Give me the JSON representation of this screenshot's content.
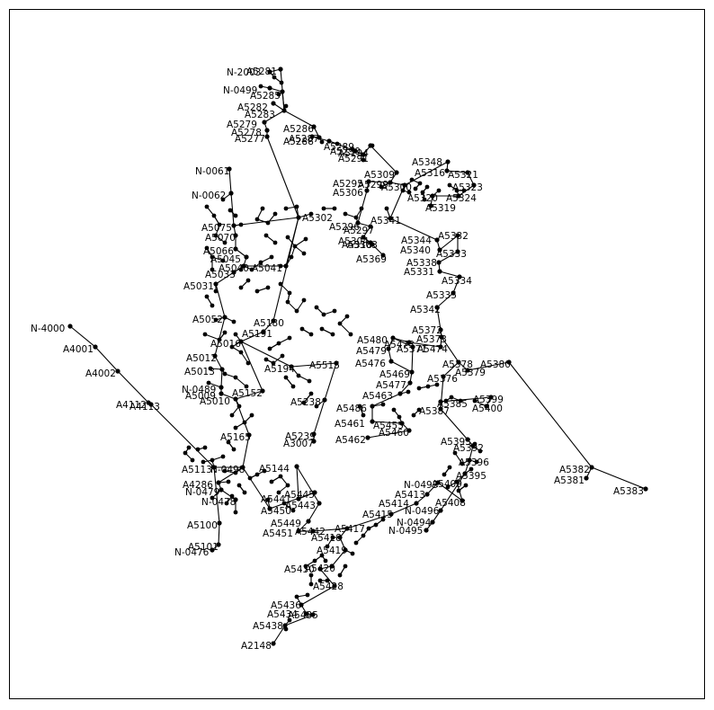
{
  "diagram": {
    "type": "network-graph",
    "labels": {
      "n1": "N-2003",
      "n2": "A5281",
      "n3": "N-0499",
      "n4": "A5285",
      "n5": "A5282",
      "n6": "A5283",
      "n7": "A5279",
      "n8": "A5278",
      "n9": "A5277",
      "n10": "A5286",
      "n11": "A5288",
      "n12": "A5287",
      "n13": "A5289",
      "n14": "A5294",
      "n15": "A5290",
      "n16": "A5291",
      "n17": "A5309",
      "n18": "A5295",
      "n19": "A5306",
      "n20": "A5299",
      "n21": "A5300",
      "n22": "A5302",
      "n23": "A5296",
      "n24": "A5297",
      "n25": "A5304",
      "n26": "A5303",
      "n27": "A5318",
      "n28": "A5369",
      "n29": "A5348",
      "n30": "A5316",
      "n31": "A5321",
      "n32": "A5323",
      "n33": "A5324",
      "n34": "A5320",
      "n35": "A5319",
      "n36": "A5341",
      "n37": "A5344",
      "n38": "A5340",
      "n39": "A5332",
      "n40": "A5333",
      "n41": "A5338",
      "n42": "A5331",
      "n43": "A5334",
      "n44": "A5335",
      "n45": "A5342",
      "n46": "A5372",
      "n47": "A5373",
      "n48": "A5480",
      "n49": "A5479",
      "n50": "A5473",
      "n51": "A5474",
      "n52": "A5476",
      "n53": "A5469",
      "n54": "A5477",
      "n55": "A5463",
      "n56": "A5378",
      "n57": "A5379",
      "n58": "A5380",
      "n59": "A5376",
      "n60": "A5399",
      "n61": "A5400",
      "n62": "A5387",
      "n63": "A5486",
      "n64": "A5461",
      "n65": "A5455",
      "n66": "A5460",
      "n67": "A5462",
      "n68": "A5382",
      "n69": "A5381",
      "n70": "A5383",
      "n71": "A5396",
      "n72": "A5392",
      "n73": "A5395",
      "n74": "A5408",
      "n75": "N-0493",
      "n76": "A5413",
      "n77": "A5414",
      "n78": "A5415",
      "n79": "N-0496",
      "n80": "N-0494",
      "n81": "N-0495",
      "n82": "A5417",
      "n83": "A5418",
      "n84": "A5419",
      "n85": "A5442",
      "n86": "A5451",
      "n87": "A5449",
      "n88": "A5443",
      "n89": "A5441",
      "n90": "A5430",
      "n91": "A5428",
      "n92": "A5436",
      "n93": "A5434",
      "n94": "A5435",
      "n95": "A5438",
      "n96": "A2148",
      "n97": "A5239",
      "n98": "A3007",
      "n99": "A5238",
      "n100": "A5515",
      "n101": "A5152",
      "n102": "A5009",
      "n103": "N-0489",
      "n104": "A5013",
      "n105": "A5012",
      "n106": "A5016",
      "n107": "A5165",
      "n108": "A5191",
      "n109": "A5180",
      "n110": "N-4000",
      "n111": "A4001",
      "n112": "A4002",
      "n113": "A4112",
      "n114": "A4113",
      "n115": "A5100",
      "n116": "A5101",
      "n117": "N-0476",
      "n118": "A4286",
      "n119": "N-0479",
      "n120": "N-0478",
      "n121": "N-0498",
      "n122": "A5144",
      "n123": "N-0061",
      "n124": "N-0062",
      "n125": "A5033",
      "n126": "A5040",
      "n127": "A5041",
      "n128": "A5045",
      "n129": "A5066",
      "n130": "A5070",
      "n131": "A5075",
      "n132": "A5385",
      "n133": "A5393",
      "n134": "A5409",
      "n135": "A5450",
      "n136": "A5420",
      "n137": "A5445",
      "n138": "A5052",
      "n139": "A5010",
      "n140": "A5031",
      "n141": "A5194",
      "n142": "A5113",
      "n143": "A5371"
    }
  }
}
